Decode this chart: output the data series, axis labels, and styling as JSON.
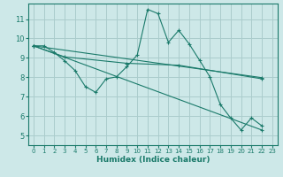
{
  "xlabel": "Humidex (Indice chaleur)",
  "background_color": "#cde8e8",
  "grid_color": "#aacccc",
  "line_color": "#1a7a6a",
  "xlim": [
    -0.5,
    23.5
  ],
  "ylim": [
    4.5,
    11.8
  ],
  "yticks": [
    5,
    6,
    7,
    8,
    9,
    10,
    11
  ],
  "xticks": [
    0,
    1,
    2,
    3,
    4,
    5,
    6,
    7,
    8,
    9,
    10,
    11,
    12,
    13,
    14,
    15,
    16,
    17,
    18,
    19,
    20,
    21,
    22,
    23
  ],
  "curve1_x": [
    0,
    1,
    2,
    3,
    4,
    5,
    6,
    7,
    8,
    9,
    10,
    11,
    12,
    13,
    14,
    15,
    16,
    17,
    18,
    19,
    20,
    21,
    22
  ],
  "curve1_y": [
    9.62,
    9.62,
    9.28,
    8.85,
    8.35,
    7.52,
    7.22,
    7.92,
    8.02,
    8.55,
    9.15,
    11.5,
    11.28,
    9.8,
    10.42,
    9.72,
    8.88,
    8.02,
    6.6,
    5.9,
    5.28,
    5.9,
    5.5
  ],
  "line2_x": [
    0,
    22
  ],
  "line2_y": [
    9.62,
    5.28
  ],
  "line3_x": [
    0,
    22
  ],
  "line3_y": [
    9.62,
    7.98
  ],
  "line4_x": [
    0,
    3,
    9,
    14,
    22
  ],
  "line4_y": [
    9.62,
    9.05,
    8.72,
    8.62,
    7.92
  ]
}
